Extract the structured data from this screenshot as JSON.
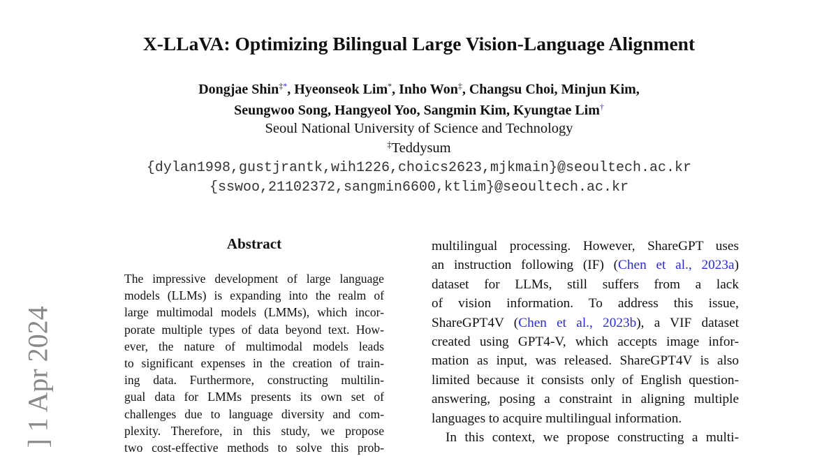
{
  "side_stamp": "] 1 Apr 2024",
  "title": "X-LLaVA: Optimizing Bilingual Large Vision-Language Alignment",
  "author_lines": [
    [
      "Dongjae Shin",
      {
        "sup": "‡"
      },
      {
        "sup_link": "*"
      },
      ", Hyeonseok Lim",
      {
        "sup": "*"
      },
      ", Inho Won",
      {
        "sup": "‡"
      },
      ", Changsu Choi, Minjun Kim,"
    ],
    [
      "Seungwoo Song, Hangyeol Yoo, Sangmin Kim, Kyungtae Lim",
      {
        "sup_link": "†"
      }
    ]
  ],
  "affiliations": [
    [
      "Seoul National University of Science and Technology"
    ],
    [
      {
        "sup": "‡"
      },
      "Teddysum"
    ]
  ],
  "emails": [
    "{dylan1998,gustjrantk,wih1226,choics2623,mjkmain}@seoultech.ac.kr",
    "{sswoo,21102372,sangmin6600,ktlim}@seoultech.ac.kr"
  ],
  "abstract": {
    "heading": "Abstract",
    "paragraphs": [
      [
        [
          "The impressive development of large language"
        ],
        [
          "models (LLMs) is expanding into the realm of"
        ],
        [
          "large multimodal models (LMMs), which incor-"
        ],
        [
          "porate multiple types of data beyond text. How-"
        ],
        [
          "ever, the nature of multimodal models leads"
        ],
        [
          "to significant expenses in the creation of train-"
        ],
        [
          "ing data. Furthermore, constructing multilin-"
        ],
        [
          "gual data for LMMs presents its own set of"
        ],
        [
          "challenges due to language diversity and com-"
        ],
        [
          "plexity. Therefore, in this study, we propose"
        ],
        [
          "two cost-effective methods to solve this prob-"
        ]
      ]
    ]
  },
  "right_column": {
    "paragraphs": [
      [
        [
          "multilingual processing. However, ShareGPT uses"
        ],
        [
          "an instruction following (IF) (",
          {
            "cite": "Chen et al., 2023a"
          },
          ")"
        ],
        [
          "dataset for LLMs, still suffers from a lack"
        ],
        [
          "of vision information. To address this issue,"
        ],
        [
          "ShareGPT4V (",
          {
            "cite": "Chen et al., 2023b"
          },
          "), a VIF dataset"
        ],
        [
          "created using GPT4-V, which accepts image infor-"
        ],
        [
          "mation as input, was released. ShareGPT4V is also"
        ],
        [
          "limited because it consists only of English question-"
        ],
        [
          "answering, posing a constraint in aligning multiple"
        ],
        [
          "languages to acquire multilingual information."
        ]
      ],
      [
        [
          "In this context, we propose constructing a multi-"
        ]
      ]
    ]
  }
}
